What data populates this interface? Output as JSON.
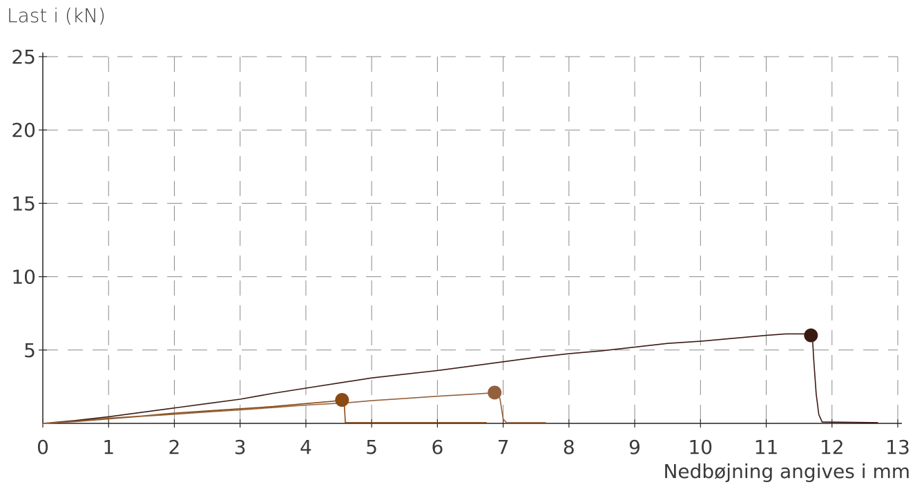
{
  "chart_data": {
    "type": "line",
    "title": "",
    "ylabel": "Last i (kN)",
    "xlabel": "Nedbøjning angives i mm",
    "xlim": [
      0,
      13
    ],
    "ylim": [
      0,
      25
    ],
    "x_ticks": [
      "0",
      "1",
      "2",
      "3",
      "4",
      "5",
      "6",
      "7",
      "8",
      "9",
      "10",
      "11",
      "12",
      "13"
    ],
    "y_ticks": [
      "5",
      "10",
      "15",
      "20",
      "25"
    ],
    "grid": true,
    "series": [
      {
        "color": "#3b1a12",
        "points": [
          [
            0,
            0
          ],
          [
            0.5,
            0.2
          ],
          [
            1,
            0.45
          ],
          [
            1.5,
            0.75
          ],
          [
            2,
            1.05
          ],
          [
            2.5,
            1.35
          ],
          [
            3,
            1.65
          ],
          [
            3.5,
            2.05
          ],
          [
            4,
            2.4
          ],
          [
            4.5,
            2.75
          ],
          [
            5,
            3.1
          ],
          [
            5.5,
            3.35
          ],
          [
            6,
            3.6
          ],
          [
            6.5,
            3.9
          ],
          [
            7,
            4.2
          ],
          [
            7.5,
            4.5
          ],
          [
            8,
            4.75
          ],
          [
            8.5,
            4.95
          ],
          [
            9,
            5.2
          ],
          [
            9.5,
            5.45
          ],
          [
            10,
            5.6
          ],
          [
            10.5,
            5.8
          ],
          [
            11,
            6.0
          ],
          [
            11.3,
            6.1
          ],
          [
            11.7,
            6.1
          ],
          [
            11.72,
            4.5
          ],
          [
            11.76,
            2.0
          ],
          [
            11.8,
            0.6
          ],
          [
            11.85,
            0.1
          ],
          [
            12.7,
            0.05
          ]
        ],
        "peak": [
          11.68,
          6.0
        ]
      },
      {
        "color": "#8a4a14",
        "points": [
          [
            0,
            0
          ],
          [
            0.5,
            0.15
          ],
          [
            1,
            0.35
          ],
          [
            1.5,
            0.5
          ],
          [
            2,
            0.7
          ],
          [
            2.5,
            0.85
          ],
          [
            3,
            1.0
          ],
          [
            3.5,
            1.15
          ],
          [
            4,
            1.35
          ],
          [
            4.4,
            1.5
          ],
          [
            4.58,
            1.6
          ],
          [
            4.6,
            0.05
          ],
          [
            6.75,
            0.05
          ]
        ],
        "peak": [
          4.55,
          1.6
        ]
      },
      {
        "color": "#94603c",
        "points": [
          [
            0,
            0
          ],
          [
            0.5,
            0.12
          ],
          [
            1,
            0.3
          ],
          [
            1.5,
            0.48
          ],
          [
            2,
            0.62
          ],
          [
            2.5,
            0.78
          ],
          [
            3,
            0.92
          ],
          [
            3.5,
            1.08
          ],
          [
            4,
            1.25
          ],
          [
            4.6,
            1.4
          ],
          [
            5,
            1.55
          ],
          [
            5.5,
            1.7
          ],
          [
            6,
            1.85
          ],
          [
            6.5,
            1.98
          ],
          [
            6.9,
            2.1
          ],
          [
            6.95,
            1.7
          ],
          [
            7.0,
            0.3
          ],
          [
            7.05,
            0.05
          ],
          [
            7.65,
            0.05
          ]
        ],
        "peak": [
          6.87,
          2.1
        ]
      }
    ]
  }
}
